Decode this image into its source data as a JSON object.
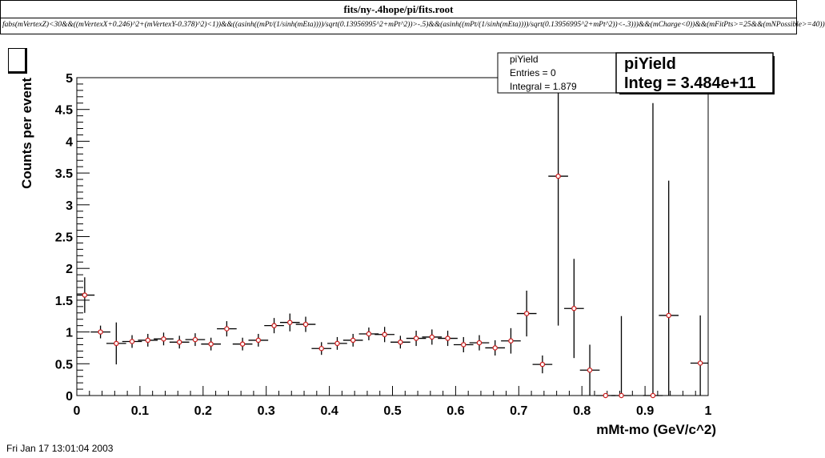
{
  "window": {
    "file_path": "fits/ny-.4hope/pi/fits.root",
    "cut_expression": "fabs(mVertexZ)<30&&((mVertexX+0.246)^2+(mVertexY-0.378)^2)<1))&&((asinh((mPt/(1/sinh(mEta))))/sqrt(0.13956995^2+mPt^2))>-.5)&&(asinh((mPt/(1/sinh(mEta))))/sqrt(0.13956995^2+mPt^2))<-.3)))&&(mCharge<0))&&(mFitPts>=25&&(mNPossible>=40))"
  },
  "stats_small": {
    "name": "piYield",
    "entries": "Entries = 0",
    "integral": "Integral =  1.879"
  },
  "stats_big": {
    "name": "piYield",
    "integ": "Integ = 3.484e+11"
  },
  "footer": {
    "date": "Fri Jan 17 13:01:04 2003"
  },
  "colors": {
    "marker": "#cc2222",
    "line": "#000000",
    "background": "#ffffff"
  },
  "chart_data": {
    "type": "scatter",
    "xlabel": "mMt-mo (GeV/c^2)",
    "ylabel": "Counts per event",
    "xlim": [
      0,
      1
    ],
    "ylim": [
      0,
      5
    ],
    "x_ticks": [
      "0",
      "0.1",
      "0.2",
      "0.3",
      "0.4",
      "0.5",
      "0.6",
      "0.7",
      "0.8",
      "0.9",
      "1"
    ],
    "y_ticks": [
      "0",
      "0.5",
      "1",
      "1.5",
      "2",
      "2.5",
      "3",
      "3.5",
      "4",
      "4.5",
      "5"
    ],
    "bin_width": 0.03125,
    "series": [
      {
        "points": [
          {
            "x": 0.0125,
            "y": 1.58,
            "err": 0.28
          },
          {
            "x": 0.0375,
            "y": 1.0,
            "err": 0.1
          },
          {
            "x": 0.0625,
            "y": 0.82,
            "err": 0.33
          },
          {
            "x": 0.0875,
            "y": 0.85,
            "err": 0.1
          },
          {
            "x": 0.1125,
            "y": 0.87,
            "err": 0.1
          },
          {
            "x": 0.1375,
            "y": 0.89,
            "err": 0.1
          },
          {
            "x": 0.1625,
            "y": 0.84,
            "err": 0.1
          },
          {
            "x": 0.1875,
            "y": 0.88,
            "err": 0.1
          },
          {
            "x": 0.2125,
            "y": 0.81,
            "err": 0.1
          },
          {
            "x": 0.2375,
            "y": 1.05,
            "err": 0.12
          },
          {
            "x": 0.2625,
            "y": 0.81,
            "err": 0.1
          },
          {
            "x": 0.2875,
            "y": 0.87,
            "err": 0.1
          },
          {
            "x": 0.3125,
            "y": 1.1,
            "err": 0.12
          },
          {
            "x": 0.3375,
            "y": 1.15,
            "err": 0.14
          },
          {
            "x": 0.3625,
            "y": 1.12,
            "err": 0.12
          },
          {
            "x": 0.3875,
            "y": 0.74,
            "err": 0.1
          },
          {
            "x": 0.4125,
            "y": 0.82,
            "err": 0.1
          },
          {
            "x": 0.4375,
            "y": 0.87,
            "err": 0.1
          },
          {
            "x": 0.4625,
            "y": 0.97,
            "err": 0.1
          },
          {
            "x": 0.4875,
            "y": 0.96,
            "err": 0.12
          },
          {
            "x": 0.5125,
            "y": 0.84,
            "err": 0.1
          },
          {
            "x": 0.5375,
            "y": 0.9,
            "err": 0.12
          },
          {
            "x": 0.5625,
            "y": 0.92,
            "err": 0.12
          },
          {
            "x": 0.5875,
            "y": 0.9,
            "err": 0.12
          },
          {
            "x": 0.6125,
            "y": 0.8,
            "err": 0.12
          },
          {
            "x": 0.6375,
            "y": 0.83,
            "err": 0.12
          },
          {
            "x": 0.6625,
            "y": 0.75,
            "err": 0.12
          },
          {
            "x": 0.6875,
            "y": 0.86,
            "err": 0.2
          },
          {
            "x": 0.7125,
            "y": 1.29,
            "err": 0.36
          },
          {
            "x": 0.7375,
            "y": 0.49,
            "err": 0.14
          },
          {
            "x": 0.7625,
            "y": 3.45,
            "err": 2.35
          },
          {
            "x": 0.7875,
            "y": 1.37,
            "err": 0.78
          },
          {
            "x": 0.8125,
            "y": 0.4,
            "err": 0.4
          },
          {
            "x": 0.8375,
            "y": 0.0,
            "err": 0.0
          },
          {
            "x": 0.8625,
            "y": 0.0,
            "err": 1.25
          },
          {
            "x": 0.8875,
            "y": null,
            "err": null
          },
          {
            "x": 0.9125,
            "y": 0.0,
            "err": 4.6
          },
          {
            "x": 0.9375,
            "y": 1.26,
            "err": 2.12
          },
          {
            "x": 0.9875,
            "y": 0.51,
            "err": 0.75
          }
        ]
      }
    ]
  }
}
